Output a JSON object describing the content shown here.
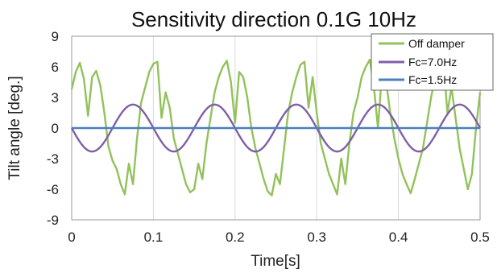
{
  "chart_data": {
    "type": "line",
    "title": "Sensitivity direction 0.1G 10Hz",
    "xlabel": "Time[s]",
    "ylabel": "Tilt angle [deg.]",
    "xlim": [
      0,
      0.5
    ],
    "ylim": [
      -9,
      9
    ],
    "x_ticks": [
      0,
      0.1,
      0.2,
      0.3,
      0.4,
      0.5
    ],
    "x_tick_labels": [
      "0",
      "0.1",
      "0.2",
      "0.3",
      "0.4",
      "0.5"
    ],
    "y_ticks": [
      -9,
      -6,
      -3,
      0,
      3,
      6,
      9
    ],
    "y_tick_labels": [
      "-9",
      "-6",
      "-3",
      "0",
      "3",
      "6",
      "9"
    ],
    "grid": "vertical",
    "legend_position": "top-right",
    "series": [
      {
        "name": "Off damper",
        "color": "#92c25a",
        "x": [
          0,
          0.005,
          0.01,
          0.015,
          0.02,
          0.025,
          0.03,
          0.035,
          0.04,
          0.045,
          0.05,
          0.055,
          0.06,
          0.065,
          0.07,
          0.075,
          0.08,
          0.085,
          0.09,
          0.095,
          0.1,
          0.105,
          0.11,
          0.115,
          0.12,
          0.125,
          0.13,
          0.135,
          0.14,
          0.145,
          0.15,
          0.155,
          0.16,
          0.165,
          0.17,
          0.175,
          0.18,
          0.185,
          0.19,
          0.195,
          0.2,
          0.205,
          0.21,
          0.215,
          0.22,
          0.225,
          0.23,
          0.235,
          0.24,
          0.245,
          0.25,
          0.255,
          0.26,
          0.265,
          0.27,
          0.275,
          0.28,
          0.285,
          0.29,
          0.295,
          0.3,
          0.305,
          0.31,
          0.315,
          0.32,
          0.325,
          0.33,
          0.335,
          0.34,
          0.345,
          0.35,
          0.355,
          0.36,
          0.365,
          0.37,
          0.375,
          0.38,
          0.385,
          0.39,
          0.395,
          0.4,
          0.405,
          0.41,
          0.415,
          0.42,
          0.425,
          0.43,
          0.435,
          0.44,
          0.445,
          0.45,
          0.455,
          0.46,
          0.465,
          0.47,
          0.475,
          0.48,
          0.485,
          0.49,
          0.495,
          0.5
        ],
        "values": [
          3.8,
          5.5,
          6.4,
          4.8,
          1.2,
          5.0,
          5.6,
          4.2,
          1.5,
          -1.8,
          -3.2,
          -4.0,
          -5.5,
          -6.5,
          -3.5,
          -5.5,
          -1.0,
          2.5,
          4.0,
          5.5,
          6.3,
          6.5,
          1.0,
          3.5,
          2.0,
          -1.0,
          -2.5,
          -4.0,
          -5.5,
          -6.3,
          -6.0,
          -3.5,
          -5.0,
          -1.5,
          1.0,
          3.5,
          5.0,
          6.0,
          6.6,
          4.5,
          0.5,
          5.5,
          5.0,
          3.0,
          0.0,
          -2.0,
          -3.5,
          -5.0,
          -6.2,
          -6.6,
          -4.5,
          -5.5,
          -2.0,
          1.5,
          3.5,
          5.0,
          6.2,
          6.5,
          2.0,
          5.0,
          1.5,
          -1.5,
          -3.0,
          -4.5,
          -5.5,
          -6.5,
          -3.0,
          -5.5,
          -1.5,
          1.5,
          3.0,
          5.0,
          6.0,
          6.7,
          4.0,
          0.0,
          5.5,
          4.5,
          1.5,
          -1.0,
          -3.0,
          -4.5,
          -5.5,
          -6.4,
          -5.0,
          -3.5,
          -2.0,
          0.5,
          3.0,
          5.0,
          6.5,
          6.6,
          1.5,
          4.0,
          1.0,
          -2.0,
          -4.0,
          -6.0,
          -4.5,
          0.0,
          3.5
        ]
      },
      {
        "name": "Fc=7.0Hz",
        "color": "#7f5fa8",
        "amplitude": 2.3,
        "frequency_hz": 10,
        "phase_deg": 180,
        "x": [
          0,
          0.025,
          0.05,
          0.075,
          0.1,
          0.125,
          0.15,
          0.175,
          0.2,
          0.225,
          0.25,
          0.275,
          0.3,
          0.325,
          0.35,
          0.375,
          0.4,
          0.425,
          0.45,
          0.475,
          0.5
        ],
        "values": [
          0.8,
          -2.3,
          0.0,
          2.3,
          0.0,
          -2.3,
          0.0,
          2.3,
          0.0,
          -2.3,
          0.0,
          2.3,
          0.0,
          -2.3,
          0.0,
          2.3,
          0.0,
          -2.3,
          0.0,
          2.3,
          0.8
        ]
      },
      {
        "name": "Fc=1.5Hz",
        "color": "#4a7fc0",
        "x": [
          0,
          0.5
        ],
        "values": [
          0,
          0
        ]
      }
    ]
  }
}
